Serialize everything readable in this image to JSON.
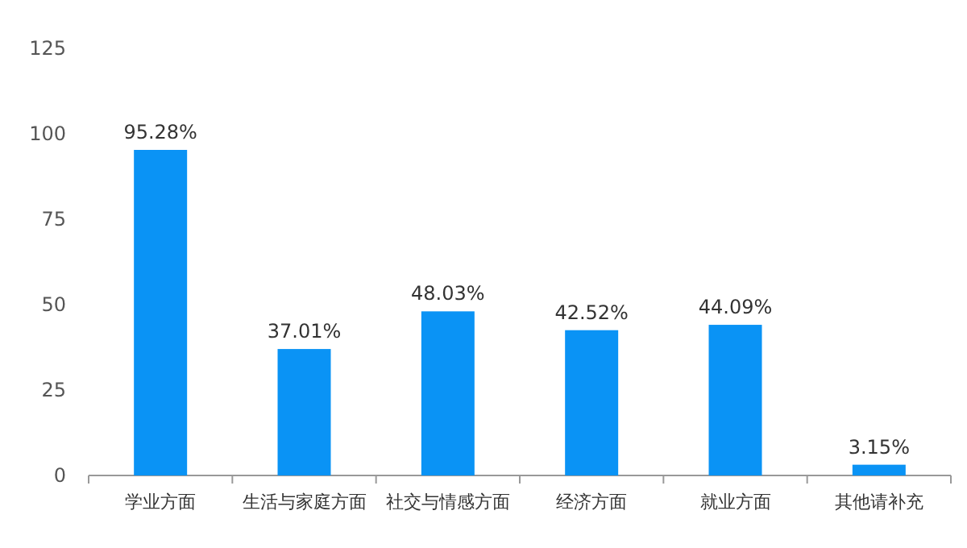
{
  "chart_data": {
    "type": "bar",
    "categories": [
      "学业方面",
      "生活与家庭方面",
      "社交与情感方面",
      "经济方面",
      "就业方面",
      "其他请补充"
    ],
    "values": [
      95.28,
      37.01,
      48.03,
      42.52,
      44.09,
      3.15
    ],
    "color": "#0a93f5",
    "value_labels": [
      "95.28%",
      "37.01%",
      "48.03%",
      "42.52%",
      "44.09%",
      "3.15%"
    ],
    "ylim": [
      0,
      125
    ],
    "yticks": [
      0,
      25,
      50,
      75,
      100,
      125
    ],
    "grid": false
  }
}
